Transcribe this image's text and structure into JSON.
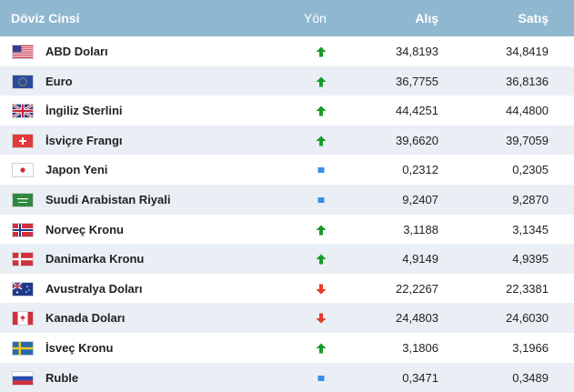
{
  "header": {
    "name": "Döviz Cinsi",
    "direction": "Yön",
    "buy": "Alış",
    "sell": "Satış"
  },
  "colors": {
    "header_bg": "#8fb7d0",
    "row_alt": "#e9eff4",
    "up": "#1a9a2a",
    "down": "#e23b2a",
    "flat": "#3a8ee6"
  },
  "rows": [
    {
      "flag": "usa-flag-icon",
      "name": "ABD Doları",
      "direction": "up",
      "buy": "34,8193",
      "sell": "34,8419"
    },
    {
      "flag": "eu-flag-icon",
      "name": "Euro",
      "direction": "up",
      "buy": "36,7755",
      "sell": "36,8136"
    },
    {
      "flag": "uk-flag-icon",
      "name": "İngiliz Sterlini",
      "direction": "up",
      "buy": "44,4251",
      "sell": "44,4800"
    },
    {
      "flag": "switzerland-flag-icon",
      "name": "İsviçre Frangı",
      "direction": "up",
      "buy": "39,6620",
      "sell": "39,7059"
    },
    {
      "flag": "japan-flag-icon",
      "name": "Japon Yeni",
      "direction": "flat",
      "buy": "0,2312",
      "sell": "0,2305"
    },
    {
      "flag": "saudi-flag-icon",
      "name": "Suudi Arabistan Riyali",
      "direction": "flat",
      "buy": "9,2407",
      "sell": "9,2870"
    },
    {
      "flag": "norway-flag-icon",
      "name": "Norveç Kronu",
      "direction": "up",
      "buy": "3,1188",
      "sell": "3,1345"
    },
    {
      "flag": "denmark-flag-icon",
      "name": "Danimarka Kronu",
      "direction": "up",
      "buy": "4,9149",
      "sell": "4,9395"
    },
    {
      "flag": "australia-flag-icon",
      "name": "Avustralya Doları",
      "direction": "down",
      "buy": "22,2267",
      "sell": "22,3381"
    },
    {
      "flag": "canada-flag-icon",
      "name": "Kanada Doları",
      "direction": "down",
      "buy": "24,4803",
      "sell": "24,6030"
    },
    {
      "flag": "sweden-flag-icon",
      "name": "İsveç Kronu",
      "direction": "up",
      "buy": "3,1806",
      "sell": "3,1966"
    },
    {
      "flag": "russia-flag-icon",
      "name": "Ruble",
      "direction": "flat",
      "buy": "0,3471",
      "sell": "0,3489"
    }
  ]
}
